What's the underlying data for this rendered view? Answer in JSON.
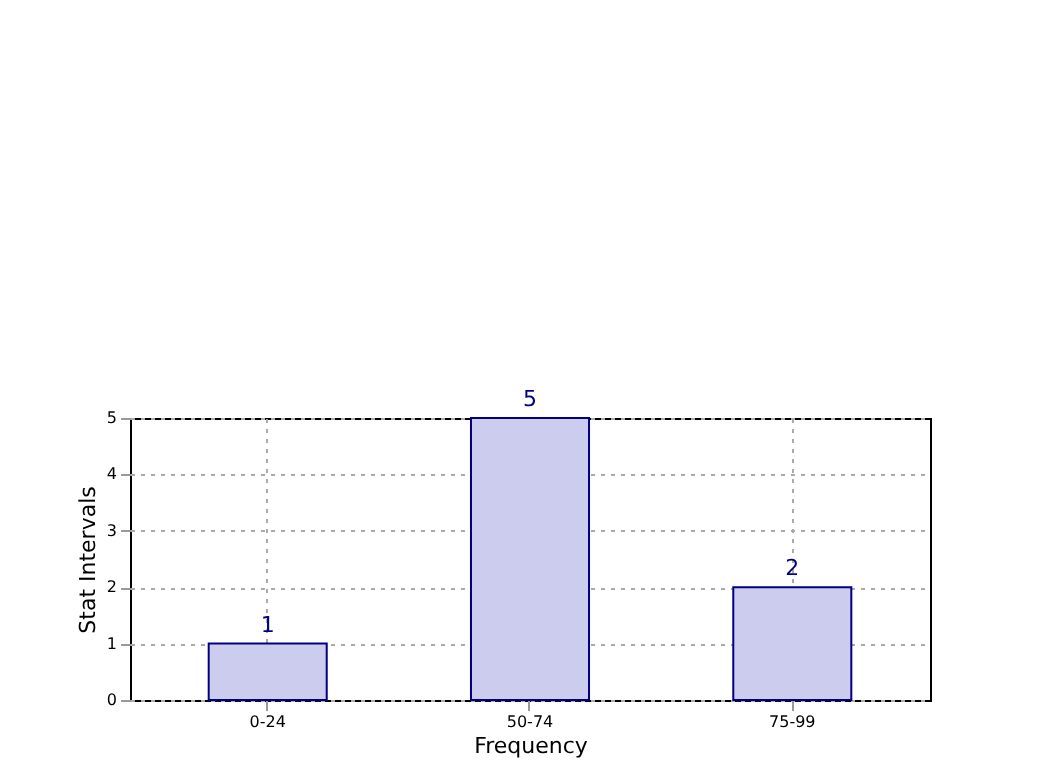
{
  "chart_data": {
    "type": "bar",
    "xlabel": "Frequency",
    "ylabel": "Stat Intervals",
    "categories": [
      "0-24",
      "50-74",
      "75-99"
    ],
    "values": [
      1,
      5,
      2
    ],
    "color": "#ccccee",
    "ylim": [
      0,
      5
    ],
    "yticks": [
      0,
      1,
      2,
      3,
      4,
      5
    ],
    "grid": true,
    "data_labels": true
  }
}
